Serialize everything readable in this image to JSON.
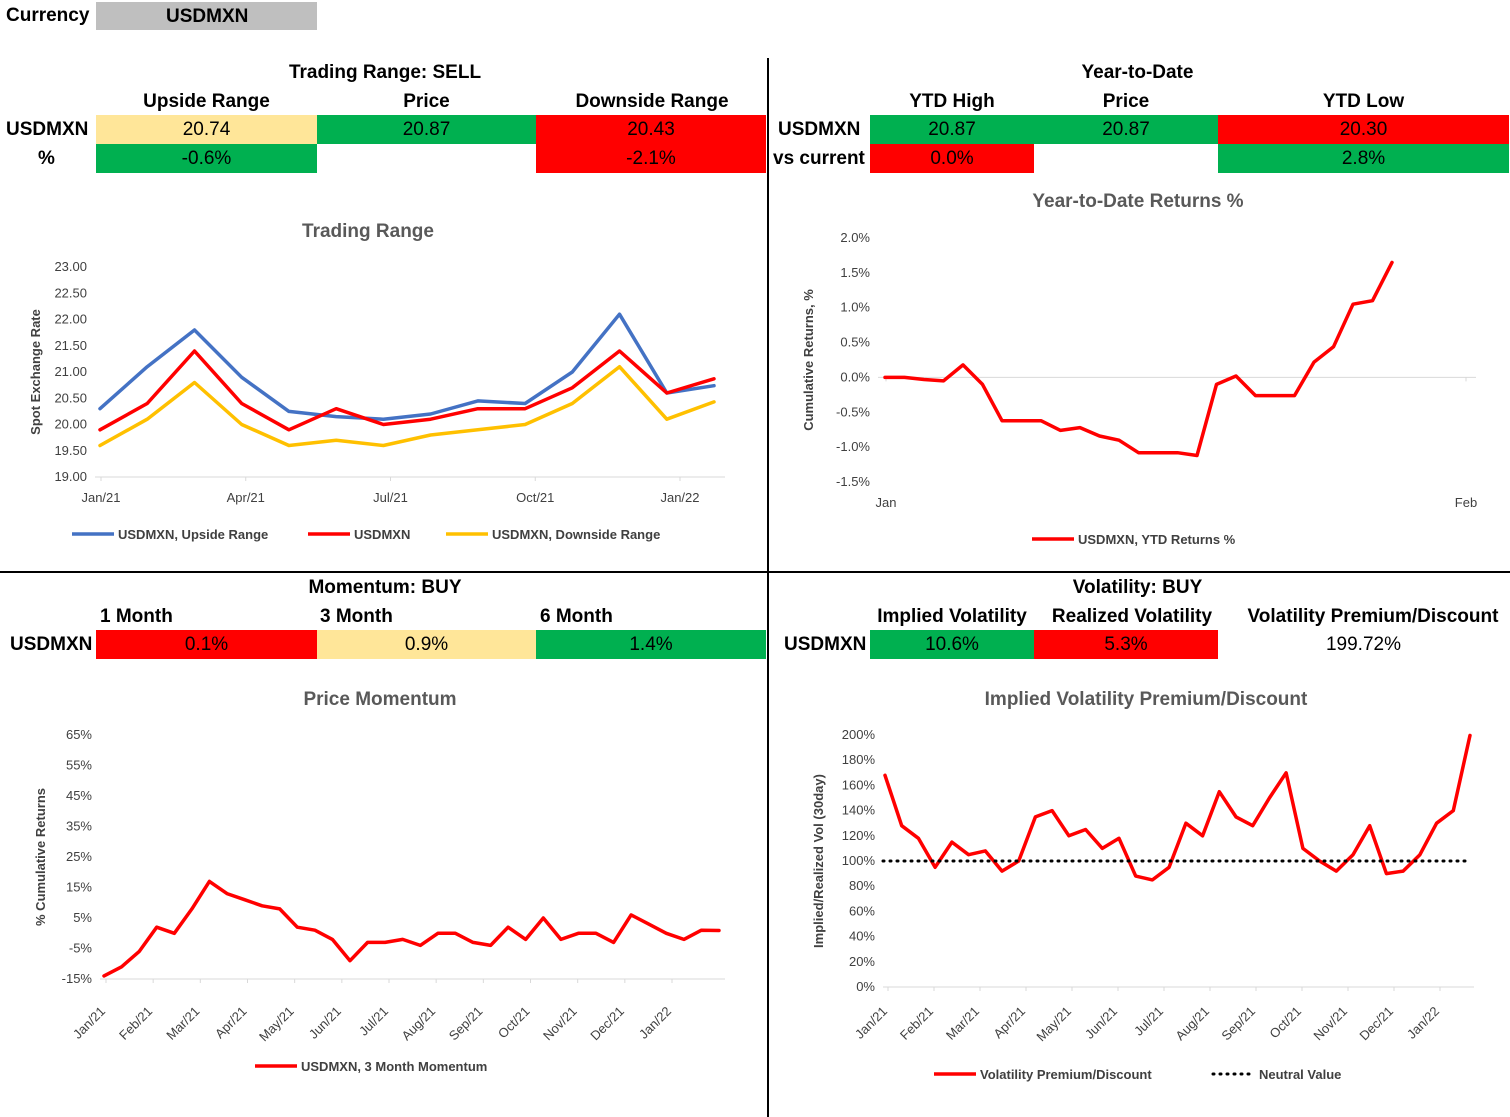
{
  "currency": {
    "label": "Currency",
    "value": "USDMXN"
  },
  "colors": {
    "green": "#00b050",
    "red": "#ff0000",
    "yellow": "#ffe699",
    "grey": "#bfbfbf",
    "blue": "#4472c4",
    "orange": "#ffc000"
  },
  "trading": {
    "title": "Trading Range: SELL",
    "headers": [
      "Upside Range",
      "Price",
      "Downside Range"
    ],
    "row1_label": "USDMXN",
    "row1": [
      "20.74",
      "20.87",
      "20.43"
    ],
    "row2_label": "%",
    "row2": [
      "-0.6%",
      "",
      "-2.1%"
    ]
  },
  "ytd": {
    "title": "Year-to-Date",
    "headers": [
      "YTD High",
      "Price",
      "YTD Low"
    ],
    "row1_label": "USDMXN",
    "row1": [
      "20.87",
      "20.87",
      "20.30"
    ],
    "row2_label": "vs current",
    "row2": [
      "0.0%",
      "",
      "2.8%"
    ]
  },
  "momentum": {
    "title": "Momentum: BUY",
    "headers": [
      "1 Month",
      "3 Month",
      "6 Month"
    ],
    "row1_label": "USDMXN",
    "row1": [
      "0.1%",
      "0.9%",
      "1.4%"
    ]
  },
  "volatility": {
    "title": "Volatility: BUY",
    "headers": [
      "Implied Volatility",
      "Realized Volatility",
      "Volatility Premium/Discount"
    ],
    "row1_label": "USDMXN",
    "row1": [
      "10.6%",
      "5.3%",
      "199.72%"
    ]
  },
  "chart_data": [
    {
      "type": "line",
      "title": "Trading Range",
      "xlabel": "",
      "ylabel": "Spot Exchange Rate",
      "ylim": [
        19.0,
        23.0
      ],
      "yticks": [
        "19.00",
        "19.50",
        "20.00",
        "20.50",
        "21.00",
        "21.50",
        "22.00",
        "22.50",
        "23.00"
      ],
      "xticks": [
        "Jan/21",
        "Apr/21",
        "Jul/21",
        "Oct/21",
        "Jan/22"
      ],
      "grid": false,
      "legend_position": "bottom",
      "x": [
        "Jan/21",
        "Feb/21",
        "Mar/21",
        "Apr/21",
        "May/21",
        "Jun/21",
        "Jul/21",
        "Aug/21",
        "Sep/21",
        "Oct/21",
        "Nov/21",
        "Dec/21",
        "Jan/22",
        "Feb/22"
      ],
      "series": [
        {
          "name": "USDMXN, Upside Range",
          "color": "#4472c4",
          "values": [
            20.3,
            21.1,
            21.8,
            20.9,
            20.25,
            20.15,
            20.1,
            20.2,
            20.45,
            20.4,
            21.0,
            22.1,
            20.6,
            20.74
          ]
        },
        {
          "name": "USDMXN",
          "color": "#ff0000",
          "values": [
            19.9,
            20.4,
            21.4,
            20.4,
            19.9,
            20.3,
            20.0,
            20.1,
            20.3,
            20.3,
            20.7,
            21.4,
            20.6,
            20.87
          ]
        },
        {
          "name": "USDMXN, Downside Range",
          "color": "#ffc000",
          "values": [
            19.6,
            20.1,
            20.8,
            20.0,
            19.6,
            19.7,
            19.6,
            19.8,
            19.9,
            20.0,
            20.4,
            21.1,
            20.1,
            20.43
          ]
        }
      ]
    },
    {
      "type": "line",
      "title": "Year-to-Date Returns %",
      "xlabel": "",
      "ylabel": "Cumulative Returns, %",
      "ylim": [
        -1.5,
        2.0
      ],
      "yticks": [
        "-1.5%",
        "-1.0%",
        "-0.5%",
        "0.0%",
        "0.5%",
        "1.0%",
        "1.5%",
        "2.0%"
      ],
      "xticks": [
        "Jan",
        "Feb"
      ],
      "grid": false,
      "legend_position": "bottom",
      "series": [
        {
          "name": "USDMXN, YTD Returns %",
          "color": "#ff0000",
          "values": [
            0.0,
            0.0,
            -0.03,
            -0.05,
            0.18,
            -0.1,
            -0.62,
            -0.62,
            -0.62,
            -0.76,
            -0.72,
            -0.84,
            -0.9,
            -1.08,
            -1.08,
            -1.08,
            -1.12,
            -0.1,
            0.02,
            -0.26,
            -0.26,
            -0.26,
            0.22,
            0.44,
            1.05,
            1.1,
            1.65
          ]
        }
      ]
    },
    {
      "type": "line",
      "title": "Price Momentum",
      "xlabel": "",
      "ylabel": "% Cumulative Returns",
      "ylim": [
        -15,
        65
      ],
      "yticks": [
        "-15%",
        "-5%",
        "5%",
        "15%",
        "25%",
        "35%",
        "45%",
        "55%",
        "65%"
      ],
      "xticks": [
        "Jan/21",
        "Feb/21",
        "Mar/21",
        "Apr/21",
        "May/21",
        "Jun/21",
        "Jul/21",
        "Aug/21",
        "Sep/21",
        "Oct/21",
        "Nov/21",
        "Dec/21",
        "Jan/22"
      ],
      "grid": false,
      "legend_position": "bottom",
      "series": [
        {
          "name": "USDMXN, 3 Month Momentum",
          "color": "#ff0000",
          "values": [
            -14,
            -11,
            -6,
            2,
            0,
            8,
            17,
            13,
            11,
            9,
            8,
            2,
            1,
            -2,
            -9,
            -3,
            -3,
            -2,
            -4,
            0,
            0,
            -3,
            -4,
            2,
            -2,
            5,
            -2,
            0,
            0,
            -3,
            6,
            3,
            0,
            -2,
            1,
            0.9
          ]
        }
      ]
    },
    {
      "type": "line",
      "title": "Implied Volatility Premium/Discount",
      "xlabel": "",
      "ylabel": "Implied/Realized Vol  (30day)",
      "ylim": [
        0,
        200
      ],
      "yticks": [
        "0%",
        "20%",
        "40%",
        "60%",
        "80%",
        "100%",
        "120%",
        "140%",
        "160%",
        "180%",
        "200%"
      ],
      "xticks": [
        "Jan/21",
        "Feb/21",
        "Mar/21",
        "Apr/21",
        "May/21",
        "Jun/21",
        "Jul/21",
        "Aug/21",
        "Sep/21",
        "Oct/21",
        "Nov/21",
        "Dec/21",
        "Jan/22"
      ],
      "grid": false,
      "legend_position": "bottom",
      "series": [
        {
          "name": "Volatility Premium/Discount",
          "color": "#ff0000",
          "values": [
            168,
            128,
            118,
            95,
            115,
            105,
            108,
            92,
            100,
            135,
            140,
            120,
            125,
            110,
            118,
            88,
            85,
            95,
            130,
            120,
            155,
            135,
            128,
            150,
            170,
            110,
            100,
            92,
            105,
            128,
            90,
            92,
            105,
            130,
            140,
            199.72
          ]
        },
        {
          "name": "Neutral Value",
          "color": "#000000",
          "dotted": true,
          "values": [
            100,
            100
          ]
        }
      ]
    }
  ]
}
